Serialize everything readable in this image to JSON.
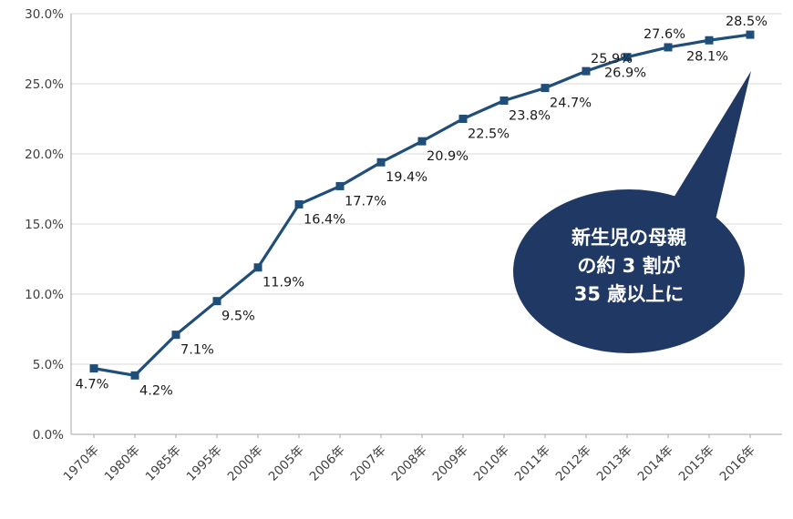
{
  "chart_data": {
    "type": "line",
    "title": "",
    "xlabel": "",
    "ylabel": "",
    "categories": [
      "1970年",
      "1980年",
      "1985年",
      "1995年",
      "2000年",
      "2005年",
      "2006年",
      "2007年",
      "2008年",
      "2009年",
      "2010年",
      "2011年",
      "2012年",
      "2013年",
      "2014年",
      "2015年",
      "2016年"
    ],
    "values": [
      4.7,
      4.2,
      7.1,
      9.5,
      11.9,
      16.4,
      17.7,
      19.4,
      20.9,
      22.5,
      23.8,
      24.7,
      25.9,
      26.9,
      27.6,
      28.1,
      28.5
    ],
    "data_labels": [
      "4.7%",
      "4.2%",
      "7.1%",
      "9.5%",
      "11.9%",
      "16.4%",
      "17.7%",
      "19.4%",
      "20.9%",
      "22.5%",
      "23.8%",
      "24.7%",
      "25.9%",
      "26.9%",
      "27.6%",
      "28.1%",
      "28.5%"
    ],
    "label_placement": [
      "below-center",
      "below",
      "below",
      "below",
      "below",
      "below",
      "below",
      "below",
      "below",
      "below",
      "below",
      "below",
      "above",
      "below-center",
      "above-center",
      "below-center",
      "above-center"
    ],
    "ylim": [
      0,
      30
    ],
    "y_tick_step": 5,
    "y_tick_labels": [
      "0.0%",
      "5.0%",
      "10.0%",
      "15.0%",
      "20.0%",
      "25.0%",
      "30.0%"
    ],
    "grid": true,
    "legend": "none",
    "line_color": "#1F4E79",
    "marker": "square",
    "colors": {
      "grid": "#D9D9D9",
      "axis": "#A6A6A6",
      "tick_text": "#3F3F3F",
      "data_label_text": "#1A1A1A"
    },
    "annotation": {
      "shape": "speech-bubble",
      "fill": "#1F3864",
      "text_color": "#FFFFFF",
      "lines": [
        "新生児の母親",
        "の約 3 割が",
        "35 歳以上に"
      ],
      "points_to": "2016年"
    }
  }
}
